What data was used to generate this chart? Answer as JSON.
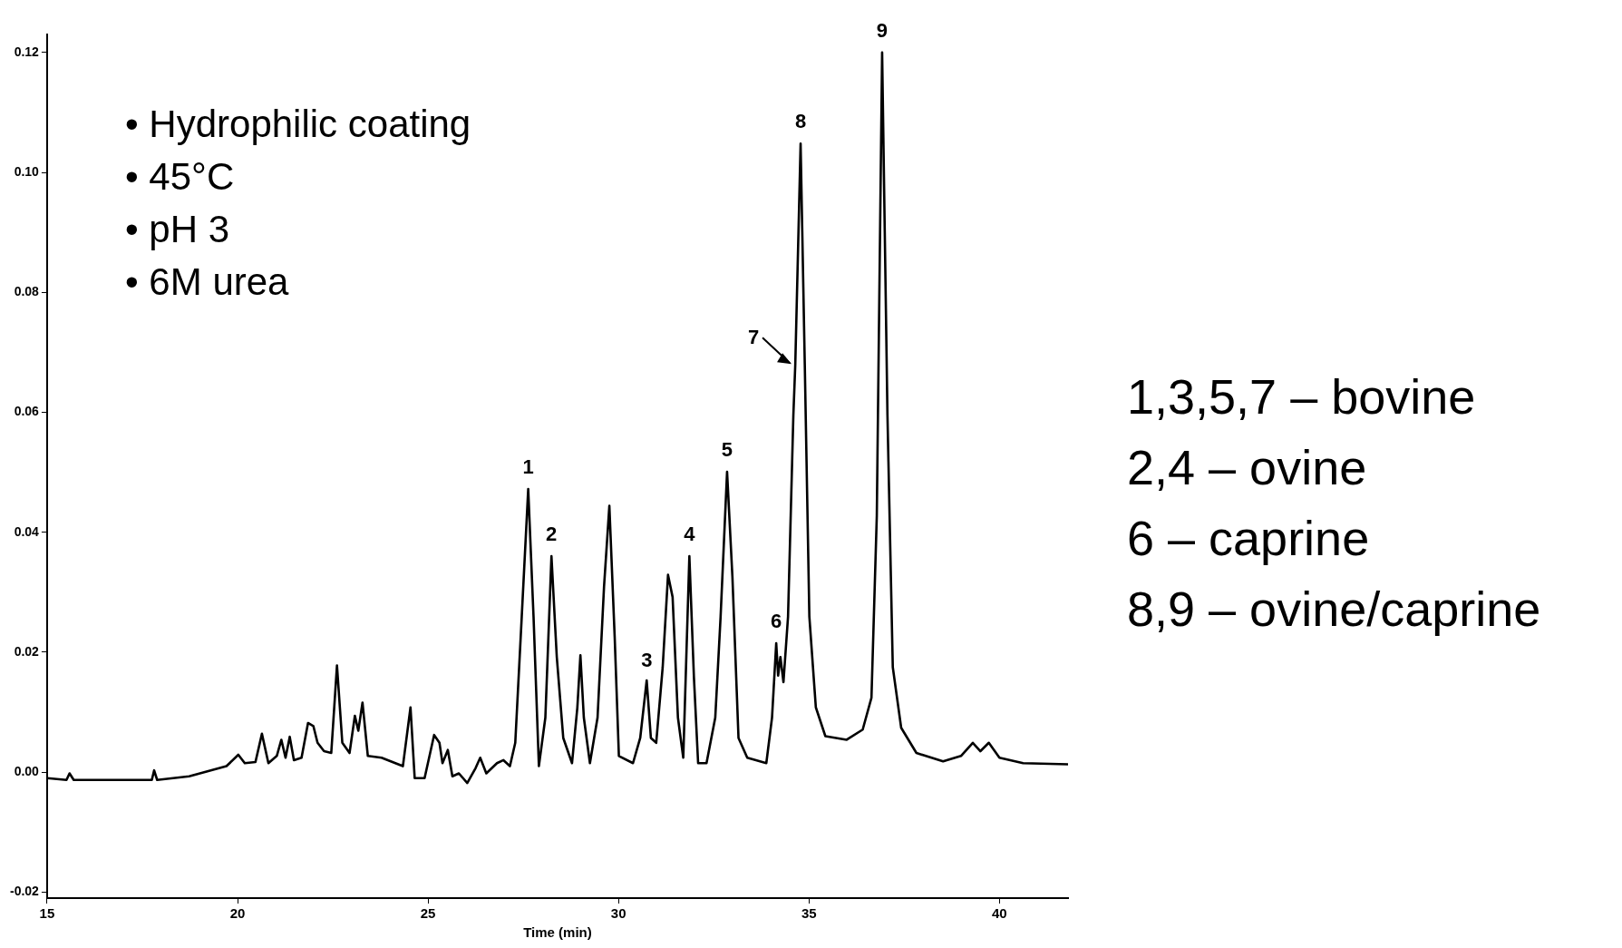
{
  "chart_data": {
    "type": "line",
    "xlabel": "Time (min)",
    "xlim": [
      15,
      41.8
    ],
    "xticks": [
      15,
      20,
      25,
      30,
      35,
      40
    ],
    "ylim": [
      -0.021,
      0.123
    ],
    "yticks": [
      {
        "value": -0.02,
        "label": "-0.02"
      },
      {
        "value": 0,
        "label": "0.00"
      },
      {
        "value": 0.02,
        "label": "0.02"
      },
      {
        "value": 0.04,
        "label": "0.04"
      },
      {
        "value": 0.06,
        "label": "0.06"
      },
      {
        "value": 0.08,
        "label": "0.08"
      },
      {
        "value": 0.1,
        "label": "0.10"
      },
      {
        "value": 0.12,
        "label": "0.12"
      }
    ],
    "grid": false,
    "legend": false,
    "marker": "none",
    "line_style": "solid",
    "series": [
      {
        "color": "#000000",
        "x": [
          15.0,
          15.51,
          15.59,
          15.7,
          17.75,
          17.81,
          17.89,
          18.73,
          19.71,
          20.02,
          20.19,
          20.47,
          20.64,
          20.81,
          21.03,
          21.15,
          21.26,
          21.37,
          21.48,
          21.68,
          21.85,
          21.99,
          22.1,
          22.27,
          22.46,
          22.61,
          22.75,
          22.94,
          23.08,
          23.17,
          23.28,
          23.42,
          23.78,
          24.34,
          24.54,
          24.65,
          24.91,
          25.16,
          25.3,
          25.38,
          25.52,
          25.64,
          25.81,
          26.03,
          26.25,
          26.37,
          26.53,
          26.81,
          26.98,
          27.15,
          27.29,
          27.46,
          27.63,
          27.77,
          27.91,
          28.08,
          28.24,
          28.38,
          28.55,
          28.78,
          28.92,
          29.0,
          29.09,
          29.25,
          29.45,
          29.62,
          29.76,
          29.9,
          30.01,
          30.38,
          30.57,
          30.74,
          30.85,
          30.99,
          31.16,
          31.3,
          31.42,
          31.56,
          31.7,
          31.78,
          31.86,
          31.98,
          32.09,
          32.31,
          32.54,
          32.68,
          32.85,
          32.99,
          33.15,
          33.38,
          33.88,
          34.03,
          34.14,
          34.19,
          34.25,
          34.33,
          34.45,
          34.59,
          34.64,
          34.78,
          34.89,
          35.01,
          35.18,
          35.43,
          35.99,
          36.41,
          36.64,
          36.78,
          36.92,
          37.06,
          37.2,
          37.42,
          37.82,
          38.52,
          38.99,
          39.3,
          39.5,
          39.72,
          40.0,
          40.62,
          41.8
        ],
        "values": [
          -0.001,
          -0.0013,
          -0.0002,
          -0.0013,
          -0.0013,
          0.0003,
          -0.0013,
          -0.0007,
          0.001,
          0.0029,
          0.0015,
          0.0017,
          0.0064,
          0.0015,
          0.0027,
          0.0054,
          0.0024,
          0.0059,
          0.002,
          0.0024,
          0.0082,
          0.0077,
          0.0049,
          0.0035,
          0.0032,
          0.0178,
          0.0049,
          0.0032,
          0.0094,
          0.0069,
          0.0116,
          0.0027,
          0.0024,
          0.001,
          0.0108,
          -0.001,
          -0.001,
          0.0062,
          0.0049,
          0.0015,
          0.0037,
          -0.0007,
          -0.0002,
          -0.0018,
          0.0007,
          0.0024,
          -0.0002,
          0.0015,
          0.002,
          0.001,
          0.0049,
          0.0259,
          0.0472,
          0.0259,
          0.001,
          0.0091,
          0.036,
          0.0192,
          0.0057,
          0.0015,
          0.0108,
          0.0195,
          0.0091,
          0.0015,
          0.0091,
          0.0309,
          0.0444,
          0.0225,
          0.0027,
          0.0015,
          0.0057,
          0.0153,
          0.0057,
          0.0049,
          0.0175,
          0.0329,
          0.0292,
          0.0091,
          0.0024,
          0.0192,
          0.036,
          0.0158,
          0.0015,
          0.0015,
          0.0091,
          0.0259,
          0.0501,
          0.0326,
          0.0057,
          0.0024,
          0.0015,
          0.0091,
          0.0215,
          0.0161,
          0.0192,
          0.015,
          0.0259,
          0.0595,
          0.0679,
          0.1048,
          0.0679,
          0.0259,
          0.0108,
          0.006,
          0.0054,
          0.0071,
          0.0124,
          0.0427,
          0.12,
          0.0595,
          0.0175,
          0.0074,
          0.0032,
          0.0018,
          0.0027,
          0.0049,
          0.0035,
          0.0049,
          0.0024,
          0.0015,
          0.0013
        ]
      }
    ],
    "annotations": [
      "• Hydrophilic coating\n• 45°C\n• pH 3\n• 6M urea",
      "1,3,5,7 – bovine\n2,4 – ovine\n6 – caprine\n8,9 – ovine/caprine",
      {
        "text": "1",
        "x": 27.63,
        "y": 0.0472
      },
      {
        "text": "2",
        "x": 28.24,
        "y": 0.036
      },
      {
        "text": "3",
        "x": 30.74,
        "y": 0.0153
      },
      {
        "text": "4",
        "x": 31.86,
        "y": 0.036
      },
      {
        "text": "5",
        "x": 32.85,
        "y": 0.0501
      },
      {
        "text": "6",
        "x": 34.14,
        "y": 0.0215
      },
      {
        "text": "7",
        "x": 34.59,
        "y": 0.0679
      },
      {
        "text": "8",
        "x": 34.78,
        "y": 0.1048
      },
      {
        "text": "9",
        "x": 36.92,
        "y": 0.12
      }
    ]
  }
}
